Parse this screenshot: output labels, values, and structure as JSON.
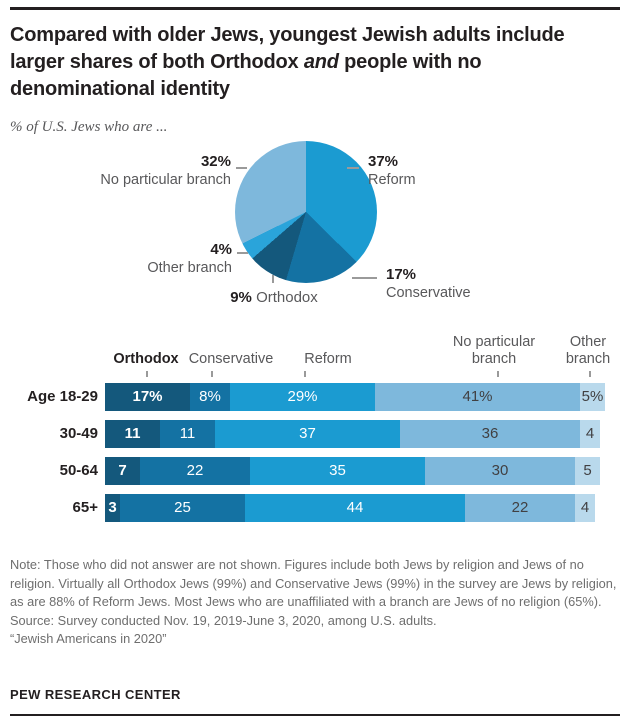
{
  "page": {
    "title_pre": "Compared with older Jews, youngest Jewish adults include larger shares of both Orthodox ",
    "title_italic": "and",
    "title_post": " people with no denominational identity",
    "subtitle": "% of U.S. Jews who are ..."
  },
  "colors": {
    "orthodox": "#14587c",
    "conservative": "#1472a3",
    "reform": "#1b9bd1",
    "pie_other_branch": "#2aa4da",
    "no_particular_branch": "#7eb8dc",
    "bar_other_branch": "#b9d9ec",
    "ink": "#231f20",
    "label_gray": "#58585a",
    "note_gray": "#6e6e6e"
  },
  "pie_labels": {
    "no_particular": {
      "pct": "32%",
      "name": "No particular branch"
    },
    "reform": {
      "pct": "37%",
      "name": "Reform"
    },
    "other": {
      "pct": "4%",
      "name": "Other branch"
    },
    "conservative": {
      "pct": "17%",
      "name": "Conservative"
    },
    "orthodox": {
      "pct": "9%",
      "name": "Orthodox"
    }
  },
  "chart_data": [
    {
      "type": "pie",
      "title": "% of U.S. Jews who are ...",
      "direction": "clockwise",
      "start_angle_deg": 0,
      "slices": [
        {
          "label": "Reform",
          "value": 37,
          "color": "#1b9bd1"
        },
        {
          "label": "Conservative",
          "value": 17,
          "color": "#1472a3"
        },
        {
          "label": "Orthodox",
          "value": 9,
          "color": "#14587c"
        },
        {
          "label": "Other branch",
          "value": 4,
          "color": "#2aa4da"
        },
        {
          "label": "No particular branch",
          "value": 32,
          "color": "#7eb8dc"
        }
      ]
    },
    {
      "type": "bar",
      "stacked": true,
      "orientation": "horizontal",
      "xlim": [
        0,
        100
      ],
      "first_row_value_suffix": "%",
      "categories": [
        "Age 18-29",
        "30-49",
        "50-64",
        "65+"
      ],
      "series": [
        {
          "name": "Orthodox",
          "color": "#14587c",
          "values": [
            17,
            11,
            7,
            3
          ]
        },
        {
          "name": "Conservative",
          "color": "#1472a3",
          "values": [
            8,
            11,
            22,
            25
          ]
        },
        {
          "name": "Reform",
          "color": "#1b9bd1",
          "values": [
            29,
            37,
            35,
            44
          ]
        },
        {
          "name": "No particular branch",
          "color": "#7eb8dc",
          "values": [
            41,
            36,
            30,
            22
          ]
        },
        {
          "name": "Other branch",
          "color": "#b9d9ec",
          "values": [
            5,
            4,
            5,
            4
          ]
        }
      ],
      "column_headers": [
        {
          "label": "Orthodox",
          "bold": true
        },
        {
          "label": "Conservative",
          "bold": false
        },
        {
          "label": "Reform",
          "bold": false
        },
        {
          "label": "No particular branch",
          "bold": false
        },
        {
          "label": "Other branch",
          "bold": false
        }
      ]
    }
  ],
  "footer": {
    "note": "Note: Those who did not answer are not shown. Figures include both Jews by religion and Jews of no religion. Virtually all Orthodox Jews (99%) and Conservative Jews (99%) in the survey are Jews by religion, as are 88% of Reform Jews. Most Jews who are unaffiliated with a branch are Jews of no religion (65%).",
    "source": "Source: Survey conducted Nov. 19, 2019-June 3, 2020, among U.S. adults.",
    "attribution": "“Jewish Americans in 2020”",
    "brand": "PEW RESEARCH CENTER"
  }
}
